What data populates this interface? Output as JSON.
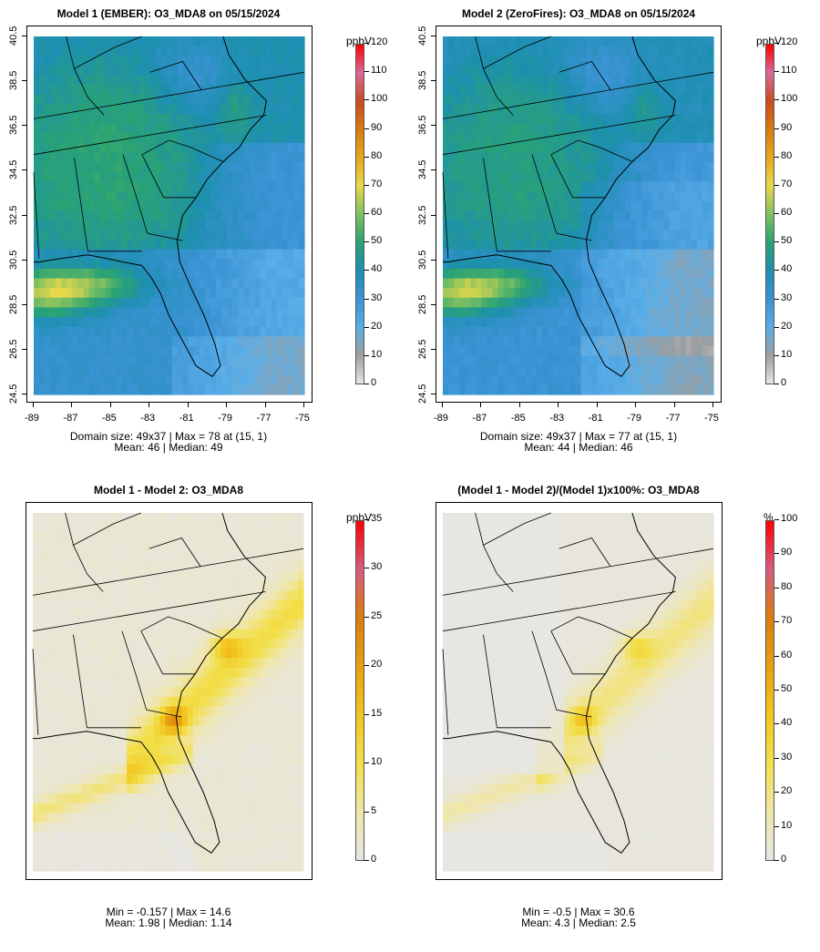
{
  "panels": [
    {
      "title": "Model 1 (EMBER): O3_MDA8 on 05/15/2024",
      "stat_line1": "Domain size: 49x37 | Max = 78 at (15, 1)",
      "stat_line2": "Mean: 46 |  Median: 49",
      "units": "ppbV",
      "colorbar_ticks": [
        "120",
        "110",
        "100",
        "90",
        "80",
        "70",
        "60",
        "50",
        "40",
        "30",
        "20",
        "10",
        "0"
      ],
      "colorbar_max": 120,
      "x_ticks": [
        "-89",
        "-87",
        "-85",
        "-83",
        "-81",
        "-79",
        "-77",
        "-75"
      ],
      "y_ticks": [
        "40.5",
        "38.5",
        "36.5",
        "34.5",
        "32.5",
        "30.5",
        "28.5",
        "26.5",
        "24.5"
      ],
      "kind": "conc"
    },
    {
      "title": "Model 2 (ZeroFires): O3_MDA8 on 05/15/2024",
      "stat_line1": "Domain size: 49x37 | Max = 77 at (15, 1)",
      "stat_line2": "Mean: 44 |  Median: 46",
      "units": "ppbV",
      "colorbar_ticks": [
        "120",
        "110",
        "100",
        "90",
        "80",
        "70",
        "60",
        "50",
        "40",
        "30",
        "20",
        "10",
        "0"
      ],
      "colorbar_max": 120,
      "x_ticks": [
        "-89",
        "-87",
        "-85",
        "-83",
        "-81",
        "-79",
        "-77",
        "-75"
      ],
      "y_ticks": [
        "40.5",
        "38.5",
        "36.5",
        "34.5",
        "32.5",
        "30.5",
        "28.5",
        "26.5",
        "24.5"
      ],
      "kind": "conc"
    },
    {
      "title": "Model 1 - Model 2: O3_MDA8",
      "stat_line1": "Min = -0.157 | Max = 14.6",
      "stat_line2": "Mean: 1.98 |  Median: 1.14",
      "units": "ppbV",
      "colorbar_ticks": [
        "35",
        "30",
        "25",
        "20",
        "15",
        "10",
        "5",
        "0"
      ],
      "colorbar_max": 35,
      "kind": "diff"
    },
    {
      "title": "(Model 1 - Model 2)/(Model 1)x100%: O3_MDA8",
      "stat_line1": "Min = -0.5 | Max = 30.6",
      "stat_line2": "Mean: 4.3 |  Median: 2.5",
      "units": "%",
      "colorbar_ticks": [
        "100",
        "90",
        "80",
        "70",
        "60",
        "50",
        "40",
        "30",
        "20",
        "10",
        "0"
      ],
      "colorbar_max": 100,
      "kind": "pct"
    }
  ],
  "colors": {
    "conc_scale": [
      "#e6e6e6",
      "#9e9e9e",
      "#5aaee8",
      "#3b93d4",
      "#1d8fb0",
      "#2aa373",
      "#7fc060",
      "#e8d84a",
      "#e6a81a",
      "#d97a0c",
      "#cc4a20",
      "#d96a9a",
      "#ff0000"
    ],
    "diff_scale": [
      "#e6e6e6",
      "#f0e6a8",
      "#f2df4a",
      "#f2c51f",
      "#e8a010",
      "#dd7d0a",
      "#d85a80",
      "#ff0000"
    ],
    "map_line": "#000000"
  }
}
